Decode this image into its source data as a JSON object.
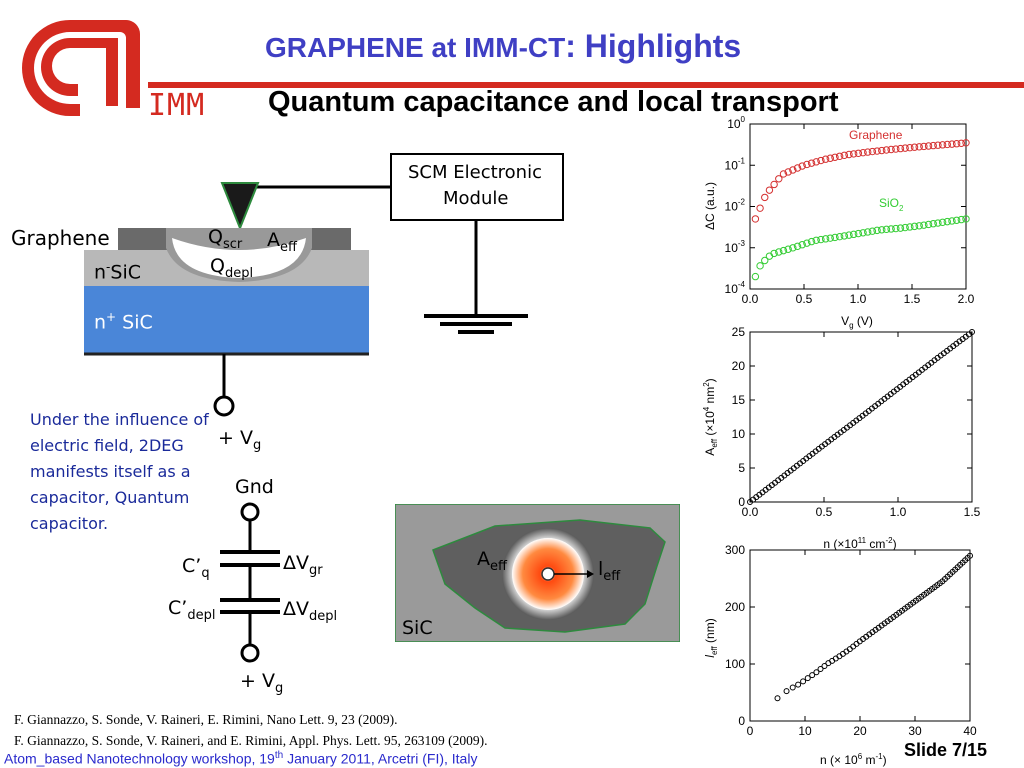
{
  "header": {
    "logo_text": "IMM",
    "title_part1": "GRAPHENE at IMM-CT",
    "title_part2": ": Highlights",
    "subtitle": "Quantum capacitance and local transport"
  },
  "device": {
    "module_line1": "SCM Electronic",
    "module_line2": "Module",
    "graphene_label": "Graphene",
    "q_scr": "Q",
    "q_scr_sub": "scr",
    "a_eff": "A",
    "a_eff_sub": "eff",
    "q_depl": "Q",
    "q_depl_sub": "depl",
    "nsic_label": "n",
    "nsic_sup": "-",
    "nsic_rest": "SiC",
    "npsic_label": "n",
    "npsic_sup": "+",
    "npsic_rest": " SiC",
    "vg_label": "+ V",
    "vg_sub": "g"
  },
  "description": "Under the influence of electric field, 2DEG manifests itself as a capacitor, Quantum capacitor.",
  "circuit": {
    "gnd": "Gnd",
    "cq": "C’",
    "cq_sub": "q",
    "cdepl": "C’",
    "cdepl_sub": "depl",
    "dvgr": "ΔV",
    "dvgr_sub": "gr",
    "dvdepl": "ΔV",
    "dvdepl_sub": "depl",
    "vg": "+ V",
    "vg_sub": "g"
  },
  "schematic": {
    "a_eff": "A",
    "a_eff_sub": "eff",
    "l_eff": "l",
    "l_eff_sub": "eff",
    "sic": "SiC"
  },
  "references": [
    "F. Giannazzo, S. Sonde, V. Raineri, E. Rimini, Nano Lett. 9, 23 (2009).",
    "F. Giannazzo, S. Sonde, V. Raineri, and E. Rimini, Appl. Phys. Lett. 95, 263109 (2009)."
  ],
  "footer": {
    "text_a": "Atom_based Nanotechnology workshop, 19",
    "text_sup": "th",
    "text_b": " January 2011, Arcetri (FI), Italy",
    "slide": "Slide 7/15"
  },
  "colors": {
    "title_blue": "#3f3fc4",
    "imm_red": "#d42a20",
    "graphene_red": "#d43030",
    "sio2_green": "#33cc33",
    "nplus_blue": "#4a86d8"
  },
  "chart_data": [
    {
      "type": "scatter",
      "title": "",
      "xlabel": "V",
      "xlabel_sub": "g",
      "xlabel_unit": " (V)",
      "ylabel": "ΔC (a.u.)",
      "yscale": "log",
      "xlim": [
        0,
        2
      ],
      "ylim": [
        0.0001,
        1
      ],
      "xticks": [
        "0.0",
        "0.5",
        "1.0",
        "1.5",
        "2.0"
      ],
      "yticks": [
        "10",
        "10",
        "10",
        "10",
        "10"
      ],
      "yticks_exp": [
        "0",
        "-1",
        "-2",
        "-3",
        "-4"
      ],
      "series": [
        {
          "name": "Graphene",
          "name_sub": "",
          "color": "#d43030",
          "x": [
            0.05,
            0.15,
            0.3,
            0.5,
            0.7,
            0.9,
            1.1,
            1.3,
            1.5,
            1.7,
            1.9,
            2.0
          ],
          "y": [
            0.005,
            0.02,
            0.06,
            0.1,
            0.14,
            0.18,
            0.21,
            0.24,
            0.27,
            0.3,
            0.33,
            0.35
          ]
        },
        {
          "name": "SiO",
          "name_sub": "2",
          "color": "#33cc33",
          "x": [
            0.05,
            0.1,
            0.2,
            0.4,
            0.6,
            0.8,
            1.0,
            1.2,
            1.4,
            1.6,
            1.8,
            2.0
          ],
          "y": [
            0.0002,
            0.0004,
            0.0007,
            0.001,
            0.0015,
            0.0018,
            0.0022,
            0.0027,
            0.003,
            0.0035,
            0.0042,
            0.005
          ]
        }
      ]
    },
    {
      "type": "scatter",
      "title": "",
      "xlabel": "n (×10",
      "xlabel_sup": "11",
      "xlabel_unit": " cm",
      "xlabel_unit_sup": "-2",
      "xlabel_tail": ")",
      "ylabel": "A",
      "ylabel_sub": "eff",
      "ylabel_rest": " (×10",
      "ylabel_sup": "4",
      "ylabel_unit": " nm",
      "ylabel_unit_sup": "2",
      "ylabel_tail": ")",
      "xlim": [
        0,
        1.5
      ],
      "ylim": [
        0,
        25
      ],
      "xticks": [
        "0.0",
        "0.5",
        "1.0",
        "1.5"
      ],
      "yticks": [
        "0",
        "5",
        "10",
        "15",
        "20",
        "25"
      ],
      "series": [
        {
          "name": "",
          "color": "#000000",
          "x": [
            0.0,
            0.25,
            0.5,
            0.75,
            1.0,
            1.25,
            1.5
          ],
          "y": [
            0,
            4.2,
            8.4,
            12.5,
            16.7,
            20.9,
            25
          ]
        }
      ]
    },
    {
      "type": "scatter",
      "title": "",
      "xlabel": "n (× 10",
      "xlabel_sup": "6",
      "xlabel_unit": " m",
      "xlabel_unit_sup": "-1",
      "xlabel_tail": ")",
      "ylabel": "l",
      "ylabel_sub": "eff",
      "ylabel_unit": " (nm)",
      "xlim": [
        0,
        40
      ],
      "ylim": [
        0,
        300
      ],
      "xticks": [
        "0",
        "10",
        "20",
        "30",
        "40"
      ],
      "yticks": [
        "0",
        "100",
        "200",
        "300"
      ],
      "series": [
        {
          "name": "",
          "color": "#000000",
          "x": [
            5,
            7,
            9,
            10,
            12,
            14,
            16,
            18,
            20,
            25,
            30,
            35,
            40
          ],
          "y": [
            40,
            55,
            65,
            72,
            85,
            100,
            112,
            125,
            140,
            175,
            210,
            245,
            290
          ]
        }
      ]
    }
  ]
}
